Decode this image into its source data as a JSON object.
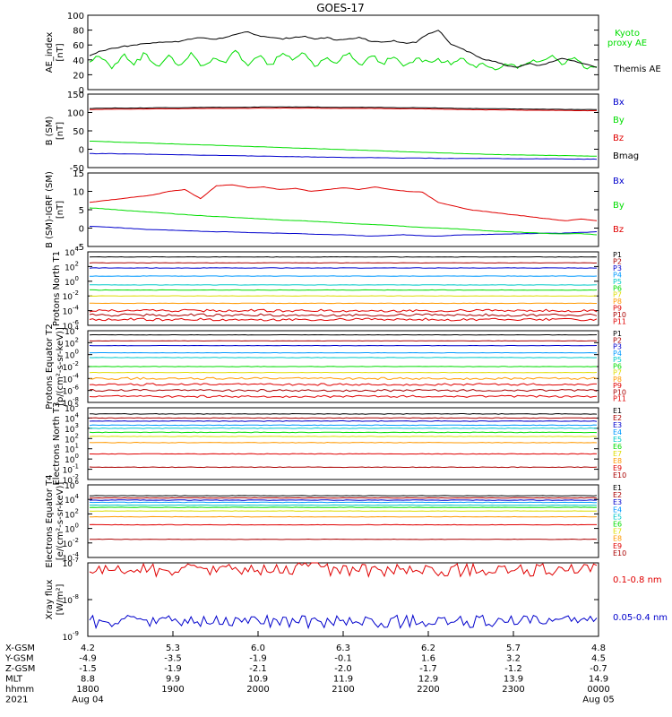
{
  "title": "GOES-17",
  "colors": {
    "black": "#000000",
    "red": "#e00000",
    "green": "#00dd00",
    "blue": "#0000cc",
    "cyan": "#00c8c8",
    "yellow": "#dddd00",
    "orange": "#ff9900",
    "darkred": "#aa0000"
  },
  "chart_data": [
    {
      "type": "line",
      "ylabel": "AE_index [nT]",
      "ylim": [
        0,
        100
      ],
      "yticks": [
        "0",
        "20",
        "40",
        "60",
        "80",
        "100"
      ],
      "yscale": "linear",
      "legend_position": "right",
      "series": [
        {
          "name": "Kyoto proxy AE",
          "color": "#00dd00",
          "profile": [
            40,
            45,
            30,
            48,
            35,
            50,
            28,
            46,
            32,
            50,
            30,
            44,
            36,
            52,
            30,
            46,
            32,
            48,
            40,
            50,
            30,
            45,
            36,
            50,
            30,
            48,
            35,
            46,
            30,
            42,
            38,
            40,
            35,
            42,
            30,
            36,
            28,
            34,
            30,
            38,
            40,
            45,
            35,
            42,
            30,
            28
          ],
          "labels": [
            "Kyoto",
            "proxy AE"
          ]
        },
        {
          "name": "Themis AE",
          "color": "#000000",
          "profile": [
            45,
            52,
            55,
            58,
            60,
            62,
            63,
            64,
            65,
            68,
            70,
            68,
            70,
            74,
            78,
            72,
            70,
            68,
            70,
            72,
            68,
            70,
            66,
            68,
            70,
            65,
            64,
            66,
            62,
            64,
            75,
            80,
            62,
            55,
            48,
            40,
            38,
            32,
            30,
            35,
            32,
            38,
            42,
            38,
            35,
            30
          ],
          "labels": [
            "Themis AE"
          ]
        }
      ]
    },
    {
      "type": "line",
      "ylabel": "B (SM) [nT]",
      "ylim": [
        -50,
        150
      ],
      "yticks": [
        "-50",
        "0",
        "50",
        "100",
        "150"
      ],
      "yscale": "linear",
      "series": [
        {
          "name": "Bx",
          "color": "#0000cc",
          "profile": [
            -12,
            -12,
            -13,
            -14,
            -15,
            -16,
            -17,
            -18,
            -19,
            -20,
            -21,
            -22,
            -23,
            -23,
            -24,
            -24,
            -25,
            -25,
            -25,
            -26,
            -26,
            -26,
            -27,
            -27
          ]
        },
        {
          "name": "By",
          "color": "#00dd00",
          "profile": [
            22,
            20,
            18,
            16,
            14,
            12,
            10,
            8,
            6,
            4,
            2,
            0,
            -2,
            -4,
            -6,
            -8,
            -10,
            -12,
            -14,
            -15,
            -16,
            -17,
            -18,
            -19
          ]
        },
        {
          "name": "Bz",
          "color": "#e00000",
          "profile": [
            108,
            109,
            109,
            110,
            110,
            111,
            111,
            111,
            112,
            112,
            112,
            111,
            111,
            111,
            110,
            110,
            109,
            108,
            107,
            107,
            106,
            106,
            105,
            105
          ]
        },
        {
          "name": "Bmag",
          "color": "#000000",
          "profile": [
            111,
            112,
            112,
            113,
            113,
            114,
            114,
            114,
            115,
            115,
            115,
            114,
            114,
            114,
            113,
            113,
            112,
            111,
            110,
            110,
            109,
            109,
            108,
            108
          ]
        }
      ]
    },
    {
      "type": "line",
      "ylabel": "B (SM)-IGRF (SM) [nT]",
      "ylim": [
        -5,
        15
      ],
      "yticks": [
        "-5",
        "0",
        "5",
        "10",
        "15"
      ],
      "yscale": "linear",
      "series": [
        {
          "name": "Bx",
          "color": "#0000cc",
          "profile": [
            0.5,
            0.3,
            0,
            -0.3,
            -0.5,
            -0.6,
            -0.8,
            -1,
            -1,
            -1.2,
            -1.3,
            -1.4,
            -1.5,
            -1.7,
            -1.8,
            -1.9,
            -2.2,
            -2,
            -1.8,
            -2.1,
            -2.2,
            -1.9,
            -1.8,
            -1.7,
            -1.6,
            -1.5,
            -1.4,
            -1.4,
            -1.2,
            -1
          ]
        },
        {
          "name": "By",
          "color": "#00dd00",
          "profile": [
            5.5,
            5.2,
            4.8,
            4.5,
            4.2,
            3.8,
            3.5,
            3.2,
            3,
            2.7,
            2.5,
            2.2,
            2,
            1.8,
            1.5,
            1.2,
            1,
            0.8,
            0.5,
            0.2,
            0,
            -0.2,
            -0.5,
            -0.8,
            -1,
            -1.2,
            -1.4,
            -1.6,
            -1.5,
            -1.8
          ]
        },
        {
          "name": "Bz",
          "color": "#e00000",
          "profile": [
            7,
            7.5,
            8,
            8.5,
            9,
            10,
            10.5,
            8,
            11.5,
            11.8,
            11,
            11.2,
            10.5,
            10.8,
            10,
            10.5,
            11,
            10.5,
            11.2,
            10.5,
            10,
            9.8,
            7,
            6,
            5,
            4.5,
            4,
            3.5,
            3,
            2.5,
            2,
            2.5,
            2
          ]
        }
      ]
    },
    {
      "type": "line",
      "ylabel": "Protons North T1",
      "ylim": [
        -6,
        4
      ],
      "yticks": [
        "10^-6",
        "10^-4",
        "10^-2",
        "10^0",
        "10^2",
        "10^4"
      ],
      "yscale": "log10",
      "series": [
        {
          "name": "P1",
          "color": "#000000",
          "level": 3.3
        },
        {
          "name": "P2",
          "color": "#aa0000",
          "level": 2.5
        },
        {
          "name": "P3",
          "color": "#0000cc",
          "level": 1.8
        },
        {
          "name": "P4",
          "color": "#0099ff",
          "level": 0.7
        },
        {
          "name": "P5",
          "color": "#00c8c8",
          "level": -0.5
        },
        {
          "name": "P6",
          "color": "#00dd00",
          "level": -1.2
        },
        {
          "name": "P7",
          "color": "#dddd00",
          "level": -2.0
        },
        {
          "name": "P8",
          "color": "#ff9900",
          "level": -3.0
        },
        {
          "name": "P9",
          "color": "#e00000",
          "level": -4.0
        },
        {
          "name": "P10",
          "color": "#aa0000",
          "level": -4.6
        },
        {
          "name": "P11",
          "color": "#e00000",
          "level": -5.2
        }
      ]
    },
    {
      "type": "line",
      "ylabel": "Protons Equator T2 [p/(cm²-s-sr-keV)]",
      "ylim": [
        -8,
        4
      ],
      "yticks": [
        "10^-8",
        "10^-6",
        "10^-4",
        "10^-2",
        "10^0",
        "10^2",
        "10^4"
      ],
      "yscale": "log10",
      "series": [
        {
          "name": "P1",
          "color": "#000000",
          "level": 3.3
        },
        {
          "name": "P2",
          "color": "#aa0000",
          "level": 2.3
        },
        {
          "name": "P3",
          "color": "#0000cc",
          "level": 1.5
        },
        {
          "name": "P4",
          "color": "#0099ff",
          "level": 0.3
        },
        {
          "name": "P5",
          "color": "#00c8c8",
          "level": -0.5
        },
        {
          "name": "P6",
          "color": "#00dd00",
          "level": -2.0
        },
        {
          "name": "P7",
          "color": "#dddd00",
          "level": -3.0
        },
        {
          "name": "P8",
          "color": "#ff9900",
          "level": -4.0
        },
        {
          "name": "P9",
          "color": "#e00000",
          "level": -5.0
        },
        {
          "name": "P10",
          "color": "#aa0000",
          "level": -6.0
        },
        {
          "name": "P11",
          "color": "#e00000",
          "level": -7.0
        }
      ]
    },
    {
      "type": "line",
      "ylabel": "Electrons North T3",
      "ylim": [
        -2,
        5
      ],
      "yticks": [
        "10^-2",
        "10^-1",
        "10^0",
        "10^1",
        "10^2",
        "10^3",
        "10^4",
        "10^5"
      ],
      "yscale": "log10",
      "series": [
        {
          "name": "E1",
          "color": "#000000",
          "level": 4.4
        },
        {
          "name": "E2",
          "color": "#aa0000",
          "level": 4.0
        },
        {
          "name": "E3",
          "color": "#0000cc",
          "level": 3.7
        },
        {
          "name": "E4",
          "color": "#0099ff",
          "level": 3.3
        },
        {
          "name": "E5",
          "color": "#00c8c8",
          "level": 3.0
        },
        {
          "name": "E6",
          "color": "#00dd00",
          "level": 2.6
        },
        {
          "name": "E7",
          "color": "#dddd00",
          "level": 2.2
        },
        {
          "name": "E8",
          "color": "#ff9900",
          "level": 1.6
        },
        {
          "name": "E9",
          "color": "#e00000",
          "level": 0.5
        },
        {
          "name": "E10",
          "color": "#aa0000",
          "level": -0.8
        }
      ]
    },
    {
      "type": "line",
      "ylabel": "Electrons Equator T4 [e/(cm²-s-sr-keV)]",
      "ylim": [
        -4,
        6
      ],
      "yticks": [
        "10^-4",
        "10^-2",
        "10^0",
        "10^2",
        "10^4",
        "10^6"
      ],
      "yscale": "log10",
      "series": [
        {
          "name": "E1",
          "color": "#000000",
          "level": 4.5
        },
        {
          "name": "E2",
          "color": "#aa0000",
          "level": 4.2
        },
        {
          "name": "E3",
          "color": "#0000cc",
          "level": 3.9
        },
        {
          "name": "E4",
          "color": "#0099ff",
          "level": 3.6
        },
        {
          "name": "E5",
          "color": "#00c8c8",
          "level": 3.2
        },
        {
          "name": "E6",
          "color": "#00dd00",
          "level": 2.9
        },
        {
          "name": "E7",
          "color": "#dddd00",
          "level": 2.4
        },
        {
          "name": "E8",
          "color": "#ff9900",
          "level": 1.6
        },
        {
          "name": "E9",
          "color": "#e00000",
          "level": 0.5
        },
        {
          "name": "E10",
          "color": "#aa0000",
          "level": -1.5
        }
      ]
    },
    {
      "type": "line",
      "ylabel": "Xray flux [W/m²]",
      "ylim": [
        -9,
        -7
      ],
      "yticks": [
        "10^-9",
        "10^-8",
        "10^-7"
      ],
      "yscale": "log10",
      "series": [
        {
          "name": "0.1-0.8 nm",
          "color": "#e00000",
          "level": -7.2
        },
        {
          "name": "0.05-0.4 nm",
          "color": "#0000cc",
          "level": -8.6
        }
      ]
    }
  ],
  "x_axis": {
    "row_labels": [
      "X-GSM",
      "Y-GSM",
      "Z-GSM",
      "MLT",
      "hhmm",
      "2021"
    ],
    "ticks": [
      {
        "values": [
          "4.2",
          "-4.9",
          "-1.5",
          "8.8",
          "1800",
          "Aug 04"
        ]
      },
      {
        "values": [
          "5.3",
          "-3.5",
          "-1.9",
          "9.9",
          "1900",
          ""
        ]
      },
      {
        "values": [
          "6.0",
          "-1.9",
          "-2.1",
          "10.9",
          "2000",
          ""
        ]
      },
      {
        "values": [
          "6.3",
          "-0.1",
          "-2.0",
          "11.9",
          "2100",
          ""
        ]
      },
      {
        "values": [
          "6.2",
          "1.6",
          "-1.7",
          "12.9",
          "2200",
          ""
        ]
      },
      {
        "values": [
          "5.7",
          "3.2",
          "-1.2",
          "13.9",
          "2300",
          ""
        ]
      },
      {
        "values": [
          "4.8",
          "4.5",
          "-0.7",
          "14.9",
          "0000",
          "Aug 05"
        ]
      }
    ]
  }
}
